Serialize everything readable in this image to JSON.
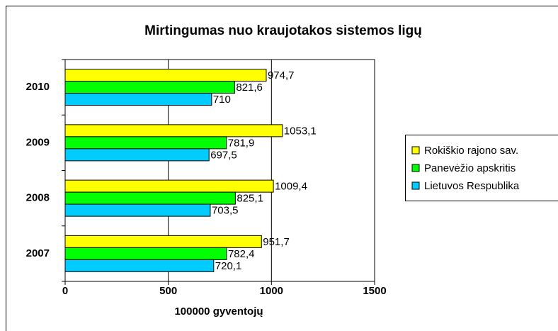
{
  "chart_data": {
    "type": "hbar",
    "title": "Mirtingumas nuo kraujotakos sistemos ligų",
    "xlabel": "100000 gyventojų",
    "categories": [
      "2010",
      "2009",
      "2008",
      "2007"
    ],
    "series": [
      {
        "name": "Rokiškio rajono sav.",
        "color": "#ffff00",
        "values": [
          974.7,
          1053.1,
          1009.4,
          951.7
        ],
        "value_labels": [
          "974,7",
          "1053,1",
          "1009,4",
          "951,7"
        ]
      },
      {
        "name": "Panevėžio apskritis",
        "color": "#00ff00",
        "values": [
          821.6,
          781.9,
          825.1,
          782.4
        ],
        "value_labels": [
          "821,6",
          "781,9",
          "825,1",
          "782,4"
        ]
      },
      {
        "name": "Lietuvos Respublika",
        "color": "#00ccff",
        "values": [
          710,
          697.5,
          703.5,
          720.1
        ],
        "value_labels": [
          "710",
          "697,5",
          "703,5",
          "720,1"
        ]
      }
    ],
    "xlim": [
      0,
      1500
    ],
    "xticks": [
      0,
      500,
      1000,
      1500
    ],
    "grid": true,
    "legend": "right"
  }
}
